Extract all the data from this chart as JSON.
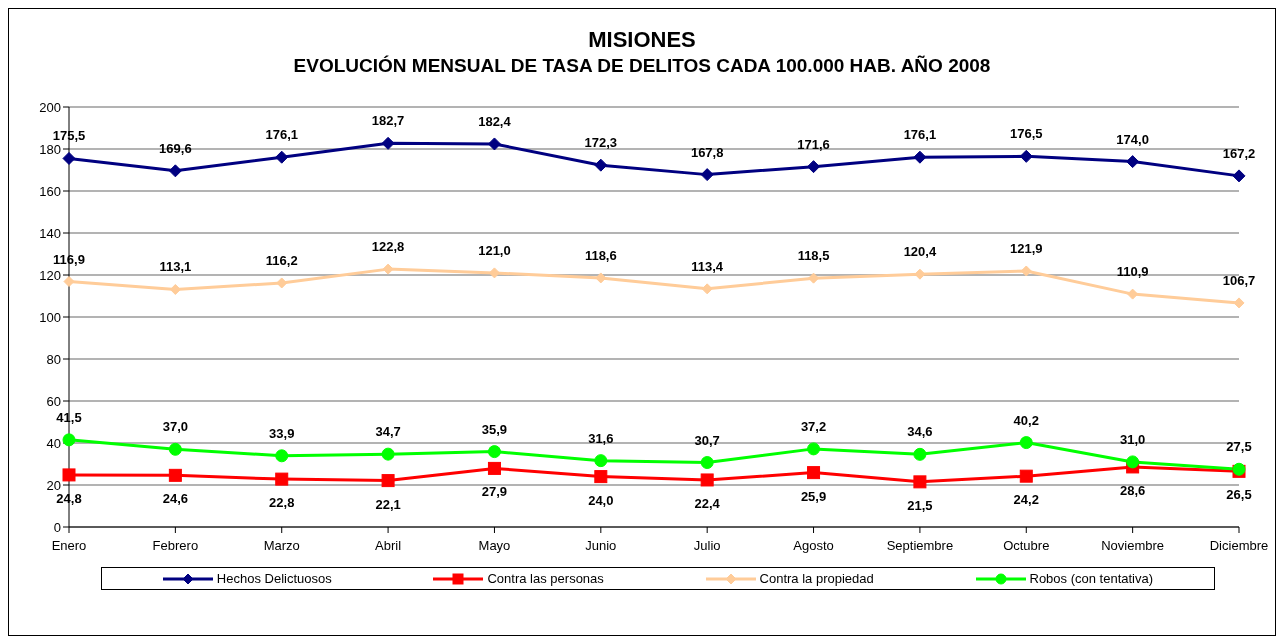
{
  "chart_data": {
    "type": "line",
    "title": "MISIONES",
    "subtitle": "EVOLUCIÓN MENSUAL DE TASA DE DELITOS CADA 100.000 HAB. AÑO 2008",
    "categories": [
      "Enero",
      "Febrero",
      "Marzo",
      "Abril",
      "Mayo",
      "Junio",
      "Julio",
      "Agosto",
      "Septiembre",
      "Octubre",
      "Noviembre",
      "Diciembre"
    ],
    "series": [
      {
        "name": "Hechos Delictuosos",
        "color": "#000080",
        "marker": "diamond",
        "values": [
          175.5,
          169.6,
          176.1,
          182.7,
          182.4,
          172.3,
          167.8,
          171.6,
          176.1,
          176.5,
          174.0,
          167.2
        ],
        "value_labels": [
          "175,5",
          "169,6",
          "176,1",
          "182,7",
          "182,4",
          "172,3",
          "167,8",
          "171,6",
          "176,1",
          "176,5",
          "174,0",
          "167,2"
        ]
      },
      {
        "name": "Contra las personas",
        "color": "#ff0000",
        "marker": "square",
        "values": [
          24.8,
          24.6,
          22.8,
          22.1,
          27.9,
          24.0,
          22.4,
          25.9,
          21.5,
          24.2,
          28.6,
          26.5
        ],
        "value_labels": [
          "24,8",
          "24,6",
          "22,8",
          "22,1",
          "27,9",
          "24,0",
          "22,4",
          "25,9",
          "21,5",
          "24,2",
          "28,6",
          "26,5"
        ]
      },
      {
        "name": "Contra la propiedad",
        "color": "#ffcc99",
        "marker": "diamond",
        "values": [
          116.9,
          113.1,
          116.2,
          122.8,
          121.0,
          118.6,
          113.4,
          118.5,
          120.4,
          121.9,
          110.9,
          106.7
        ],
        "value_labels": [
          "116,9",
          "113,1",
          "116,2",
          "122,8",
          "121,0",
          "118,6",
          "113,4",
          "118,5",
          "120,4",
          "121,9",
          "110,9",
          "106,7"
        ]
      },
      {
        "name": "Robos (con tentativa)",
        "color": "#00ff00",
        "marker": "circle",
        "values": [
          41.5,
          37.0,
          33.9,
          34.7,
          35.9,
          31.6,
          30.7,
          37.2,
          34.6,
          40.2,
          31.0,
          27.5
        ],
        "value_labels": [
          "41,5",
          "37,0",
          "33,9",
          "34,7",
          "35,9",
          "31,6",
          "30,7",
          "37,2",
          "34,6",
          "40,2",
          "31,0",
          "27,5"
        ]
      }
    ],
    "ylim": [
      0,
      200
    ],
    "yticks": [
      0,
      20,
      40,
      60,
      80,
      100,
      120,
      140,
      160,
      180,
      200
    ],
    "grid": "y",
    "legend": "bottom",
    "line_style": "solid"
  }
}
